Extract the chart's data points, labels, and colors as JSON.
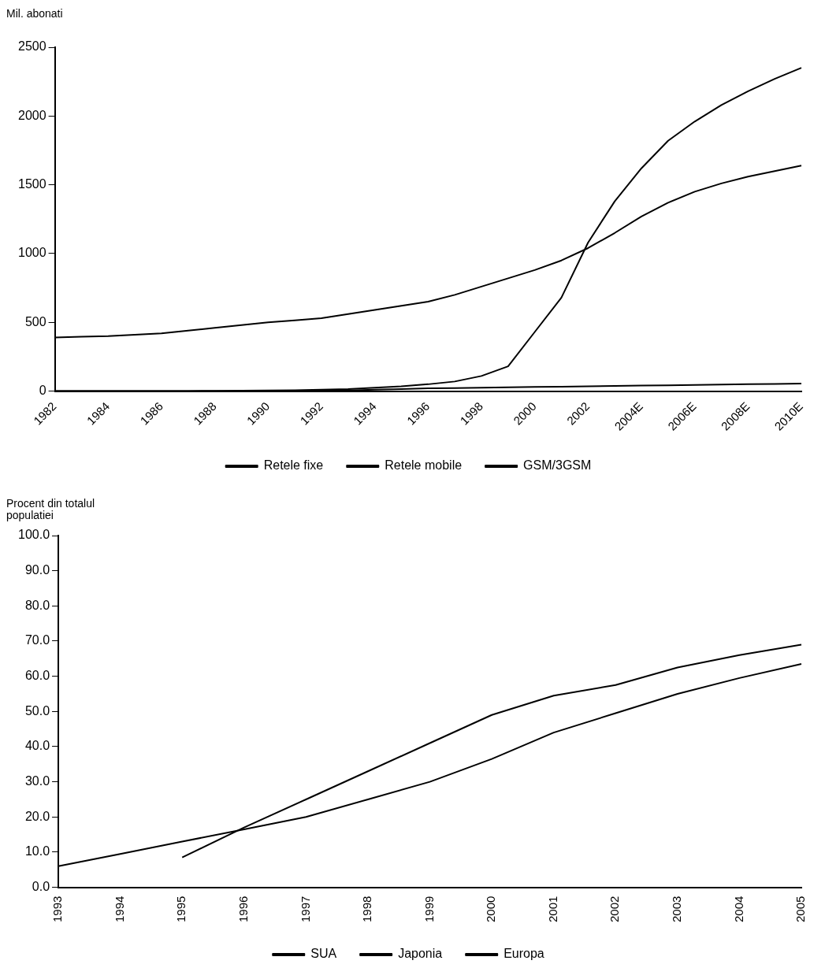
{
  "chart_data": [
    {
      "type": "line",
      "ylabel": "Mil. abonati",
      "categories": [
        "1982",
        null,
        "1984",
        null,
        "1986",
        null,
        "1988",
        null,
        "1990",
        null,
        "1992",
        null,
        "1994",
        null,
        "1996",
        null,
        "1998",
        null,
        "2000",
        null,
        "2002",
        null,
        "2004E",
        null,
        "2006E",
        null,
        "2008E",
        null,
        "2010E"
      ],
      "series": [
        {
          "name": "Retele fixe",
          "color": "#000000",
          "values": [
            390,
            395,
            400,
            410,
            420,
            440,
            460,
            480,
            500,
            515,
            530,
            560,
            590,
            620,
            650,
            700,
            760,
            820,
            880,
            950,
            1040,
            1150,
            1270,
            1370,
            1450,
            1510,
            1560,
            1600,
            1640
          ]
        },
        {
          "name": "Retele mobile",
          "color": "#000000",
          "values": [
            0,
            0,
            0,
            0,
            0,
            1,
            2,
            3,
            5,
            7,
            10,
            15,
            25,
            35,
            50,
            70,
            110,
            180,
            430,
            680,
            1080,
            1380,
            1620,
            1820,
            1960,
            2080,
            2180,
            2270,
            2350
          ]
        },
        {
          "name": "GSM/3GSM",
          "color": "#000000",
          "values": [
            0,
            0,
            0,
            0,
            0,
            0,
            0,
            0,
            1,
            2,
            3,
            5,
            10,
            15,
            20,
            22,
            25,
            28,
            30,
            32,
            35,
            38,
            40,
            42,
            45,
            48,
            50,
            52,
            55
          ]
        }
      ],
      "ylim": [
        0,
        2500
      ],
      "yticks": [
        0,
        500,
        1000,
        1500,
        2000,
        2500
      ],
      "grid": false,
      "legend": "bottom",
      "marker": "none",
      "line_style": "solid"
    },
    {
      "type": "line",
      "ylabel": "Procent din totalul populatiei",
      "categories": [
        "1993",
        "1994",
        "1995",
        "1996",
        "1997",
        "1998",
        "1999",
        "2000",
        "2001",
        "2002",
        "2003",
        "2004",
        "2005"
      ],
      "series": [
        {
          "name": "SUA",
          "color": "#000000",
          "values": [
            6,
            9.5,
            13,
            16.5,
            20,
            25,
            30,
            36.5,
            44,
            49.5,
            55,
            59.5,
            63.5
          ]
        },
        {
          "name": "Japonia",
          "color": "#000000",
          "values": [
            null,
            null,
            8.5,
            17,
            25,
            33,
            41,
            49,
            54.5,
            57.5,
            62.5,
            66,
            69
          ]
        },
        {
          "name": "Europa",
          "color": "#000000",
          "values": [
            null,
            null,
            null,
            null,
            null,
            null,
            null,
            null,
            null,
            null,
            null,
            null,
            null
          ]
        }
      ],
      "ylim": [
        0,
        100
      ],
      "yticks": [
        {
          "value": 0,
          "label": "0.0"
        },
        {
          "value": 10,
          "label": "10.0"
        },
        {
          "value": 20,
          "label": "20.0"
        },
        {
          "value": 30,
          "label": "30.0"
        },
        {
          "value": 40,
          "label": "40.0"
        },
        {
          "value": 50,
          "label": "50.0"
        },
        {
          "value": 60,
          "label": "60.0"
        },
        {
          "value": 70,
          "label": "70.0"
        },
        {
          "value": 80,
          "label": "80.0"
        },
        {
          "value": 90,
          "label": "90.0"
        },
        {
          "value": 100,
          "label": "100.0"
        }
      ],
      "grid": false,
      "legend": "bottom",
      "marker": "none",
      "line_style": "solid"
    }
  ]
}
